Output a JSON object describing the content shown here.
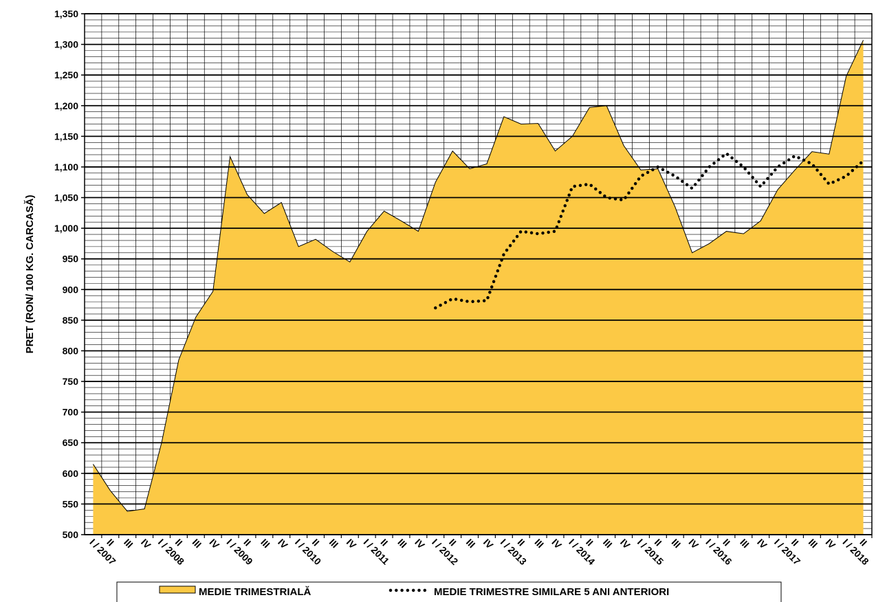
{
  "chart_data": {
    "type": "area",
    "y_label": "PRET (RON/ 100 KG. CARCASĂ)",
    "categories": [
      "I / 2007",
      "II",
      "III",
      "IV",
      "I / 2008",
      "II",
      "III",
      "IV",
      "I / 2009",
      "II",
      "III",
      "IV",
      "I / 2010",
      "II",
      "III",
      "IV",
      "I / 2011",
      "II",
      "III",
      "IV",
      "I / 2012",
      "II",
      "III",
      "IV",
      "I / 2013",
      "II",
      "III",
      "IV",
      "I / 2014",
      "II",
      "III",
      "IV",
      "I / 2015",
      "II",
      "III",
      "IV",
      "I / 2016",
      "II",
      "III",
      "IV",
      "I / 2017",
      "II",
      "III",
      "IV",
      "I / 2018",
      "II"
    ],
    "series": [
      {
        "name": "MEDIE TRIMESTRIALĂ",
        "type": "area",
        "color": "#fcc945",
        "values": [
          615,
          572,
          538,
          542,
          650,
          785,
          855,
          897,
          1117,
          1055,
          1024,
          1042,
          970,
          982,
          962,
          945,
          995,
          1028,
          1012,
          995,
          1075,
          1126,
          1097,
          1105,
          1182,
          1170,
          1171,
          1126,
          1150,
          1197,
          1200,
          1135,
          1095,
          1097,
          1035,
          960,
          975,
          995,
          991,
          1012,
          1063,
          1095,
          1125,
          1121,
          1248,
          1307
        ]
      },
      {
        "name": "MEDIE TRIMESTRE SIMILARE 5 ANI ANTERIORI",
        "type": "dotted-line",
        "color": "#000000",
        "values": [
          null,
          null,
          null,
          null,
          null,
          null,
          null,
          null,
          null,
          null,
          null,
          null,
          null,
          null,
          null,
          null,
          null,
          null,
          null,
          null,
          870,
          885,
          880,
          882,
          958,
          995,
          991,
          995,
          1068,
          1072,
          1050,
          1046,
          1085,
          1100,
          1085,
          1065,
          1100,
          1122,
          1100,
          1068,
          1100,
          1118,
          1105,
          1072,
          1085,
          1110
        ]
      }
    ],
    "ylim": [
      500,
      1350
    ],
    "yticks": [
      500,
      550,
      600,
      650,
      700,
      750,
      800,
      850,
      900,
      950,
      {
        "value": 1000,
        "label": "1,000"
      },
      {
        "value": 1050,
        "label": "1,050"
      },
      {
        "value": 1100,
        "label": "1,100"
      },
      {
        "value": 1150,
        "label": "1,150"
      },
      {
        "value": 1200,
        "label": "1,200"
      },
      {
        "value": 1250,
        "label": "1,250"
      },
      {
        "value": 1300,
        "label": "1,300"
      },
      {
        "value": 1350,
        "label": "1,350"
      }
    ],
    "grid": true,
    "minor_grid": true,
    "legend": "bottom"
  }
}
